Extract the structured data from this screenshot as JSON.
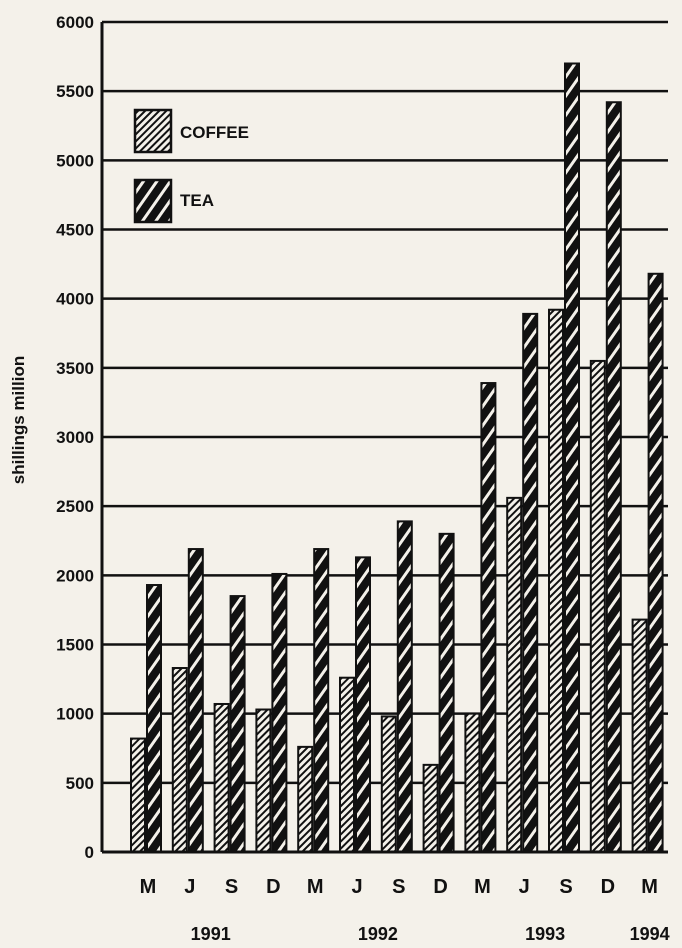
{
  "chart_data": {
    "type": "bar",
    "title": "",
    "xlabel": "",
    "ylabel": "shillings million",
    "ylim": [
      0,
      6000
    ],
    "yticks": [
      0,
      500,
      1000,
      1500,
      2000,
      2500,
      3000,
      3500,
      4000,
      4500,
      5000,
      5500,
      6000
    ],
    "grid": true,
    "legend_position": "top-left",
    "categories": [
      "M",
      "J",
      "S",
      "D",
      "M",
      "J",
      "S",
      "D",
      "M",
      "J",
      "S",
      "D",
      "M"
    ],
    "years": [
      {
        "label": "1991",
        "start": 0,
        "end": 3
      },
      {
        "label": "1992",
        "start": 4,
        "end": 7
      },
      {
        "label": "1993",
        "start": 8,
        "end": 11
      },
      {
        "label": "1994",
        "start": 12,
        "end": 12
      }
    ],
    "series": [
      {
        "name": "COFFEE",
        "values": [
          820,
          1330,
          1070,
          1030,
          760,
          1260,
          980,
          630,
          1000,
          2560,
          3920,
          3550,
          1680
        ]
      },
      {
        "name": "TEA",
        "values": [
          1930,
          2190,
          1850,
          2010,
          2190,
          2130,
          2390,
          2300,
          3390,
          3890,
          5700,
          5420,
          4180
        ]
      }
    ]
  }
}
